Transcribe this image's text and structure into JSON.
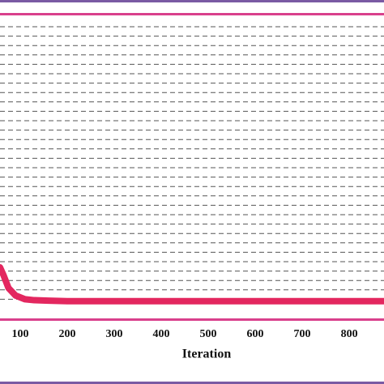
{
  "chart_data": {
    "type": "line",
    "x_label": "Iteration",
    "x": [
      57,
      65,
      75,
      90,
      110,
      130,
      160,
      200,
      300,
      400,
      500,
      600,
      700,
      800,
      874
    ],
    "series": [
      {
        "color": "#e3275f",
        "values": [
          4.4,
          3.5,
          2.2,
          1.4,
          1.0,
          0.9,
          0.85,
          0.8,
          0.8,
          0.8,
          0.8,
          0.8,
          0.8,
          0.8,
          0.8
        ]
      }
    ],
    "xlim": [
      57,
      874
    ],
    "xticks": [
      100,
      200,
      300,
      400,
      500,
      600,
      700,
      800
    ],
    "ylim": [
      0,
      30
    ],
    "yticks": [
      1,
      2,
      3,
      4,
      5,
      6,
      7,
      8,
      9,
      10,
      11,
      12,
      13,
      14,
      15,
      16,
      17,
      18,
      19,
      20,
      21,
      22,
      23,
      24,
      25,
      26,
      27,
      28,
      29,
      30
    ],
    "grid": true,
    "ytick_labels": false
  }
}
